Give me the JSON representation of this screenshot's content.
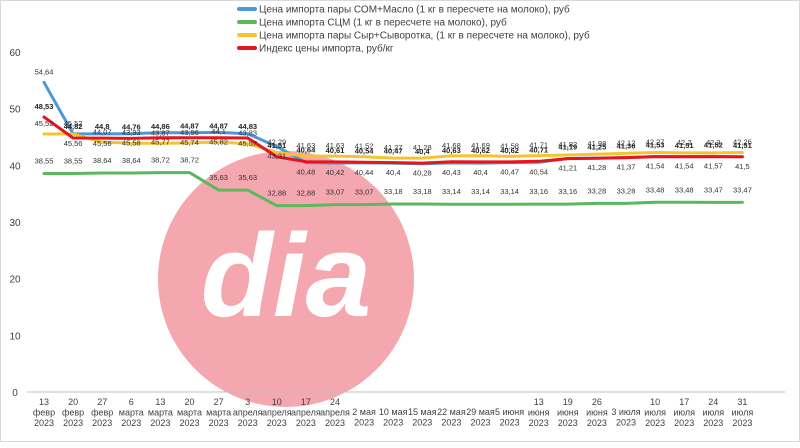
{
  "chart_data": {
    "type": "line",
    "ylim": [
      0,
      60
    ],
    "yticks": [
      "0",
      "10",
      "20",
      "30",
      "40",
      "50",
      "60"
    ],
    "grid": false,
    "legend_position": "top",
    "categories": [
      [
        "13",
        "февр",
        "2023"
      ],
      [
        "20",
        "февр",
        "2023"
      ],
      [
        "27",
        "февр",
        "2023"
      ],
      [
        "6",
        "марта",
        "2023"
      ],
      [
        "13",
        "марта",
        "2023"
      ],
      [
        "20",
        "марта",
        "2023"
      ],
      [
        "27",
        "марта",
        "2023"
      ],
      [
        "3",
        "апреля",
        "2023"
      ],
      [
        "10",
        "апреля",
        "2023"
      ],
      [
        "17",
        "апреля",
        "2023"
      ],
      [
        "24",
        "апреля",
        "2023"
      ],
      [
        "2 мая",
        "2023"
      ],
      [
        "10 мая",
        "2023"
      ],
      [
        "15 мая",
        "2023"
      ],
      [
        "22 мая",
        "2023"
      ],
      [
        "29 мая",
        "2023"
      ],
      [
        "5 июня",
        "2023"
      ],
      [
        "13",
        "июня",
        "2023"
      ],
      [
        "19",
        "июня",
        "2023"
      ],
      [
        "26",
        "июня",
        "2023"
      ],
      [
        "3 июля",
        "2023"
      ],
      [
        "10",
        "июля",
        "2023"
      ],
      [
        "17",
        "июля",
        "2023"
      ],
      [
        "24",
        "июля",
        "2023"
      ],
      [
        "31",
        "июля",
        "2023"
      ]
    ],
    "series": [
      {
        "name": "Цена импорта пары СОМ+Масло (1 кг в пересчете на молоко), руб",
        "color": "#4a9ad8",
        "values": [
          54.64,
          45.56,
          45.56,
          45.58,
          45.77,
          45.74,
          45.82,
          45.57,
          43.31,
          40.48,
          40.42,
          40.44,
          40.4,
          40.28,
          40.43,
          40.4,
          40.47,
          40.54,
          41.21,
          41.28,
          41.37,
          41.54,
          41.54,
          41.57,
          41.5
        ],
        "labels": [
          "54,64",
          "45,56",
          "45,56",
          "45,58",
          "45,77",
          "45,74",
          "45,82",
          "45,57",
          "43,31",
          "40,48",
          "40,42",
          "40,44",
          "40,4",
          "40,28",
          "40,43",
          "40,4",
          "40,47",
          "40,54",
          "41,21",
          "41,28",
          "41,37",
          "41,54",
          "41,54",
          "41,57",
          "41,5"
        ]
      },
      {
        "name": "Цена импорта СЦМ (1 кг в пересчете на молоко), руб",
        "color": "#5cb85c",
        "values": [
          38.55,
          38.55,
          38.64,
          38.64,
          38.72,
          38.72,
          35.63,
          35.63,
          32.88,
          32.88,
          33.07,
          33.07,
          33.18,
          33.18,
          33.14,
          33.14,
          33.14,
          33.16,
          33.16,
          33.28,
          33.28,
          33.48,
          33.48,
          33.47,
          33.47
        ],
        "labels": [
          "38,55",
          "38,55",
          "38,64",
          "38,64",
          "38,72",
          "38,72",
          "35,63",
          "35,63",
          "32,88",
          "32,88",
          "33,07",
          "33,07",
          "33,18",
          "33,18",
          "33,14",
          "33,14",
          "33,14",
          "33,16",
          "33,16",
          "33,28",
          "33,28",
          "33,48",
          "33,48",
          "33,47",
          "33,47"
        ]
      },
      {
        "name": "Цена импорта пары Сыр+Сыворотка, (1 кг в пересчете на молоко), руб",
        "color": "#f4c430",
        "values": [
          45.52,
          45.52,
          44.07,
          43.93,
          43.87,
          43.96,
          44.1,
          43.83,
          42.29,
          41.63,
          41.63,
          41.52,
          41.27,
          41.28,
          41.68,
          41.69,
          41.58,
          41.71,
          41.82,
          41.98,
          42.12,
          42.27,
          42.2,
          42.2,
          42.26
        ],
        "labels": [
          "45,52",
          "45,52",
          "44,07",
          "43,93",
          "43,87",
          "43,96",
          "44,1",
          "43,83",
          "42,29",
          "41,63",
          "41,63",
          "41,52",
          "41,27",
          "41,28",
          "41,68",
          "41,69",
          "41,58",
          "41,71",
          "41,82",
          "41,98",
          "42,12",
          "42,27",
          "42,2",
          "42,2",
          "42,26"
        ]
      },
      {
        "name": "Индекс цены импорта, руб/кг",
        "color": "#e8141c",
        "values": [
          48.53,
          44.82,
          44.8,
          44.76,
          44.86,
          44.87,
          44.87,
          44.83,
          41.51,
          40.64,
          40.61,
          40.54,
          40.47,
          40.4,
          40.63,
          40.62,
          40.62,
          40.71,
          41.19,
          41.25,
          41.36,
          41.53,
          41.51,
          41.52,
          41.51
        ],
        "labels": [
          "48,53",
          "44,82",
          "44,8",
          "44,76",
          "44,86",
          "44,87",
          "44,87",
          "44,83",
          "41,51",
          "40,64",
          "40,61",
          "40,54",
          "40,47",
          "40,4",
          "40,63",
          "40,62",
          "40,62",
          "40,71",
          "41,19",
          "41,25",
          "41,36",
          "41,53",
          "41,51",
          "41,52",
          "41,51"
        ]
      }
    ]
  },
  "watermark": {
    "text": "dia",
    "circle_color": "#f4a0a8"
  }
}
